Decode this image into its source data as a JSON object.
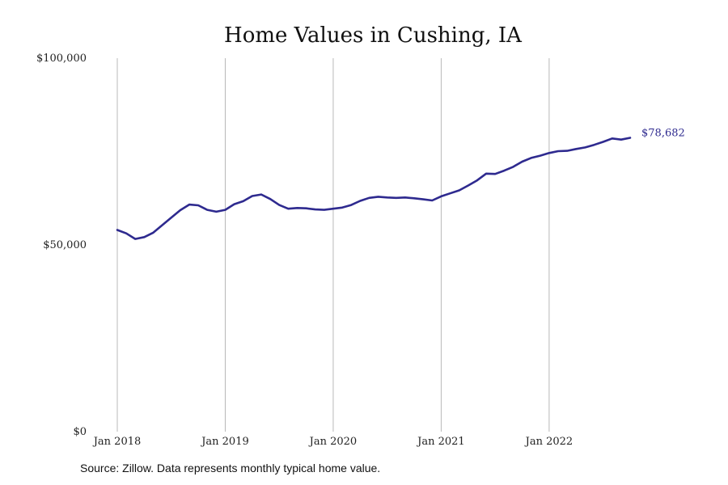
{
  "chart_data": {
    "type": "line",
    "title": "Home Values in Cushing, IA",
    "xlabel": "",
    "ylabel": "",
    "ylim": [
      0,
      100000
    ],
    "xlim": [
      "2018-01",
      "2022-10"
    ],
    "yticks": [
      {
        "value": 0,
        "label": "$0"
      },
      {
        "value": 50000,
        "label": "$50,000"
      },
      {
        "value": 100000,
        "label": "$100,000"
      }
    ],
    "xticks": [
      {
        "value": "2018-01",
        "label": "Jan 2018"
      },
      {
        "value": "2019-01",
        "label": "Jan 2019"
      },
      {
        "value": "2020-01",
        "label": "Jan 2020"
      },
      {
        "value": "2021-01",
        "label": "Jan 2021"
      },
      {
        "value": "2022-01",
        "label": "Jan 2022"
      }
    ],
    "grid": "vertical",
    "line_color": "#2e2a8f",
    "end_label": "$78,682",
    "series": [
      {
        "x": [
          "2018-01",
          "2018-02",
          "2018-03",
          "2018-04",
          "2018-05",
          "2018-06",
          "2018-07",
          "2018-08",
          "2018-09",
          "2018-10",
          "2018-11",
          "2018-12",
          "2019-01",
          "2019-02",
          "2019-03",
          "2019-04",
          "2019-05",
          "2019-06",
          "2019-07",
          "2019-08",
          "2019-09",
          "2019-10",
          "2019-11",
          "2019-12",
          "2020-01",
          "2020-02",
          "2020-03",
          "2020-04",
          "2020-05",
          "2020-06",
          "2020-07",
          "2020-08",
          "2020-09",
          "2020-10",
          "2020-11",
          "2020-12",
          "2021-01",
          "2021-02",
          "2021-03",
          "2021-04",
          "2021-05",
          "2021-06",
          "2021-07",
          "2021-08",
          "2021-09",
          "2021-10",
          "2021-11",
          "2021-12",
          "2022-01",
          "2022-02",
          "2022-03",
          "2022-04",
          "2022-05",
          "2022-06",
          "2022-07",
          "2022-08",
          "2022-09",
          "2022-10"
        ],
        "values": [
          54000,
          53100,
          51600,
          52100,
          53300,
          55300,
          57300,
          59300,
          60800,
          60600,
          59400,
          58900,
          59400,
          60900,
          61700,
          63100,
          63500,
          62300,
          60700,
          59700,
          59900,
          59800,
          59500,
          59400,
          59700,
          60000,
          60700,
          61800,
          62600,
          62900,
          62700,
          62600,
          62700,
          62500,
          62200,
          61900,
          63000,
          63800,
          64600,
          65900,
          67300,
          69100,
          69000,
          69900,
          70900,
          72300,
          73300,
          73900,
          74600,
          75100,
          75200,
          75700,
          76100,
          76800,
          77600,
          78500,
          78200,
          78682
        ]
      }
    ]
  },
  "footer": {
    "source": "Source: Zillow. Data represents monthly typical home value."
  }
}
